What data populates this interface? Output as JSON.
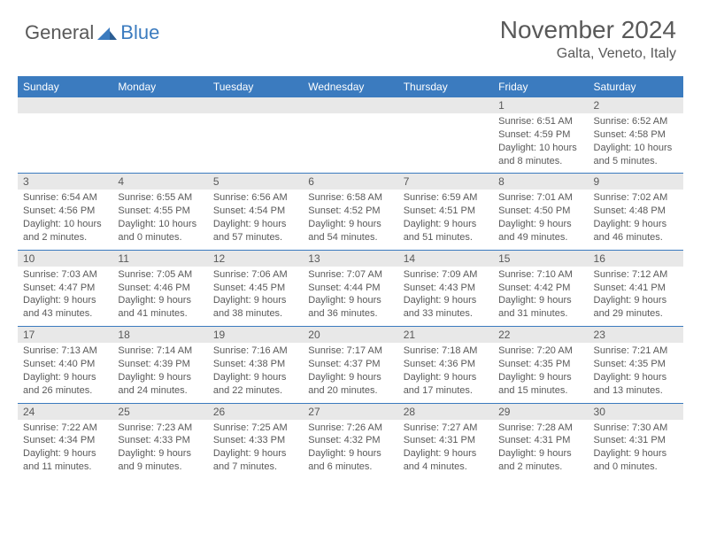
{
  "logo": {
    "general": "General",
    "blue": "Blue"
  },
  "title": "November 2024",
  "location": "Galta, Veneto, Italy",
  "colors": {
    "header_bg": "#3b7bbf",
    "header_text": "#ffffff",
    "daynum_bg": "#e8e8e8",
    "text": "#595959",
    "border": "#3b7bbf",
    "background": "#ffffff"
  },
  "dayNames": [
    "Sunday",
    "Monday",
    "Tuesday",
    "Wednesday",
    "Thursday",
    "Friday",
    "Saturday"
  ],
  "weeks": [
    [
      null,
      null,
      null,
      null,
      null,
      {
        "d": "1",
        "sr": "Sunrise: 6:51 AM",
        "ss": "Sunset: 4:59 PM",
        "dl1": "Daylight: 10 hours",
        "dl2": "and 8 minutes."
      },
      {
        "d": "2",
        "sr": "Sunrise: 6:52 AM",
        "ss": "Sunset: 4:58 PM",
        "dl1": "Daylight: 10 hours",
        "dl2": "and 5 minutes."
      }
    ],
    [
      {
        "d": "3",
        "sr": "Sunrise: 6:54 AM",
        "ss": "Sunset: 4:56 PM",
        "dl1": "Daylight: 10 hours",
        "dl2": "and 2 minutes."
      },
      {
        "d": "4",
        "sr": "Sunrise: 6:55 AM",
        "ss": "Sunset: 4:55 PM",
        "dl1": "Daylight: 10 hours",
        "dl2": "and 0 minutes."
      },
      {
        "d": "5",
        "sr": "Sunrise: 6:56 AM",
        "ss": "Sunset: 4:54 PM",
        "dl1": "Daylight: 9 hours",
        "dl2": "and 57 minutes."
      },
      {
        "d": "6",
        "sr": "Sunrise: 6:58 AM",
        "ss": "Sunset: 4:52 PM",
        "dl1": "Daylight: 9 hours",
        "dl2": "and 54 minutes."
      },
      {
        "d": "7",
        "sr": "Sunrise: 6:59 AM",
        "ss": "Sunset: 4:51 PM",
        "dl1": "Daylight: 9 hours",
        "dl2": "and 51 minutes."
      },
      {
        "d": "8",
        "sr": "Sunrise: 7:01 AM",
        "ss": "Sunset: 4:50 PM",
        "dl1": "Daylight: 9 hours",
        "dl2": "and 49 minutes."
      },
      {
        "d": "9",
        "sr": "Sunrise: 7:02 AM",
        "ss": "Sunset: 4:48 PM",
        "dl1": "Daylight: 9 hours",
        "dl2": "and 46 minutes."
      }
    ],
    [
      {
        "d": "10",
        "sr": "Sunrise: 7:03 AM",
        "ss": "Sunset: 4:47 PM",
        "dl1": "Daylight: 9 hours",
        "dl2": "and 43 minutes."
      },
      {
        "d": "11",
        "sr": "Sunrise: 7:05 AM",
        "ss": "Sunset: 4:46 PM",
        "dl1": "Daylight: 9 hours",
        "dl2": "and 41 minutes."
      },
      {
        "d": "12",
        "sr": "Sunrise: 7:06 AM",
        "ss": "Sunset: 4:45 PM",
        "dl1": "Daylight: 9 hours",
        "dl2": "and 38 minutes."
      },
      {
        "d": "13",
        "sr": "Sunrise: 7:07 AM",
        "ss": "Sunset: 4:44 PM",
        "dl1": "Daylight: 9 hours",
        "dl2": "and 36 minutes."
      },
      {
        "d": "14",
        "sr": "Sunrise: 7:09 AM",
        "ss": "Sunset: 4:43 PM",
        "dl1": "Daylight: 9 hours",
        "dl2": "and 33 minutes."
      },
      {
        "d": "15",
        "sr": "Sunrise: 7:10 AM",
        "ss": "Sunset: 4:42 PM",
        "dl1": "Daylight: 9 hours",
        "dl2": "and 31 minutes."
      },
      {
        "d": "16",
        "sr": "Sunrise: 7:12 AM",
        "ss": "Sunset: 4:41 PM",
        "dl1": "Daylight: 9 hours",
        "dl2": "and 29 minutes."
      }
    ],
    [
      {
        "d": "17",
        "sr": "Sunrise: 7:13 AM",
        "ss": "Sunset: 4:40 PM",
        "dl1": "Daylight: 9 hours",
        "dl2": "and 26 minutes."
      },
      {
        "d": "18",
        "sr": "Sunrise: 7:14 AM",
        "ss": "Sunset: 4:39 PM",
        "dl1": "Daylight: 9 hours",
        "dl2": "and 24 minutes."
      },
      {
        "d": "19",
        "sr": "Sunrise: 7:16 AM",
        "ss": "Sunset: 4:38 PM",
        "dl1": "Daylight: 9 hours",
        "dl2": "and 22 minutes."
      },
      {
        "d": "20",
        "sr": "Sunrise: 7:17 AM",
        "ss": "Sunset: 4:37 PM",
        "dl1": "Daylight: 9 hours",
        "dl2": "and 20 minutes."
      },
      {
        "d": "21",
        "sr": "Sunrise: 7:18 AM",
        "ss": "Sunset: 4:36 PM",
        "dl1": "Daylight: 9 hours",
        "dl2": "and 17 minutes."
      },
      {
        "d": "22",
        "sr": "Sunrise: 7:20 AM",
        "ss": "Sunset: 4:35 PM",
        "dl1": "Daylight: 9 hours",
        "dl2": "and 15 minutes."
      },
      {
        "d": "23",
        "sr": "Sunrise: 7:21 AM",
        "ss": "Sunset: 4:35 PM",
        "dl1": "Daylight: 9 hours",
        "dl2": "and 13 minutes."
      }
    ],
    [
      {
        "d": "24",
        "sr": "Sunrise: 7:22 AM",
        "ss": "Sunset: 4:34 PM",
        "dl1": "Daylight: 9 hours",
        "dl2": "and 11 minutes."
      },
      {
        "d": "25",
        "sr": "Sunrise: 7:23 AM",
        "ss": "Sunset: 4:33 PM",
        "dl1": "Daylight: 9 hours",
        "dl2": "and 9 minutes."
      },
      {
        "d": "26",
        "sr": "Sunrise: 7:25 AM",
        "ss": "Sunset: 4:33 PM",
        "dl1": "Daylight: 9 hours",
        "dl2": "and 7 minutes."
      },
      {
        "d": "27",
        "sr": "Sunrise: 7:26 AM",
        "ss": "Sunset: 4:32 PM",
        "dl1": "Daylight: 9 hours",
        "dl2": "and 6 minutes."
      },
      {
        "d": "28",
        "sr": "Sunrise: 7:27 AM",
        "ss": "Sunset: 4:31 PM",
        "dl1": "Daylight: 9 hours",
        "dl2": "and 4 minutes."
      },
      {
        "d": "29",
        "sr": "Sunrise: 7:28 AM",
        "ss": "Sunset: 4:31 PM",
        "dl1": "Daylight: 9 hours",
        "dl2": "and 2 minutes."
      },
      {
        "d": "30",
        "sr": "Sunrise: 7:30 AM",
        "ss": "Sunset: 4:31 PM",
        "dl1": "Daylight: 9 hours",
        "dl2": "and 0 minutes."
      }
    ]
  ]
}
